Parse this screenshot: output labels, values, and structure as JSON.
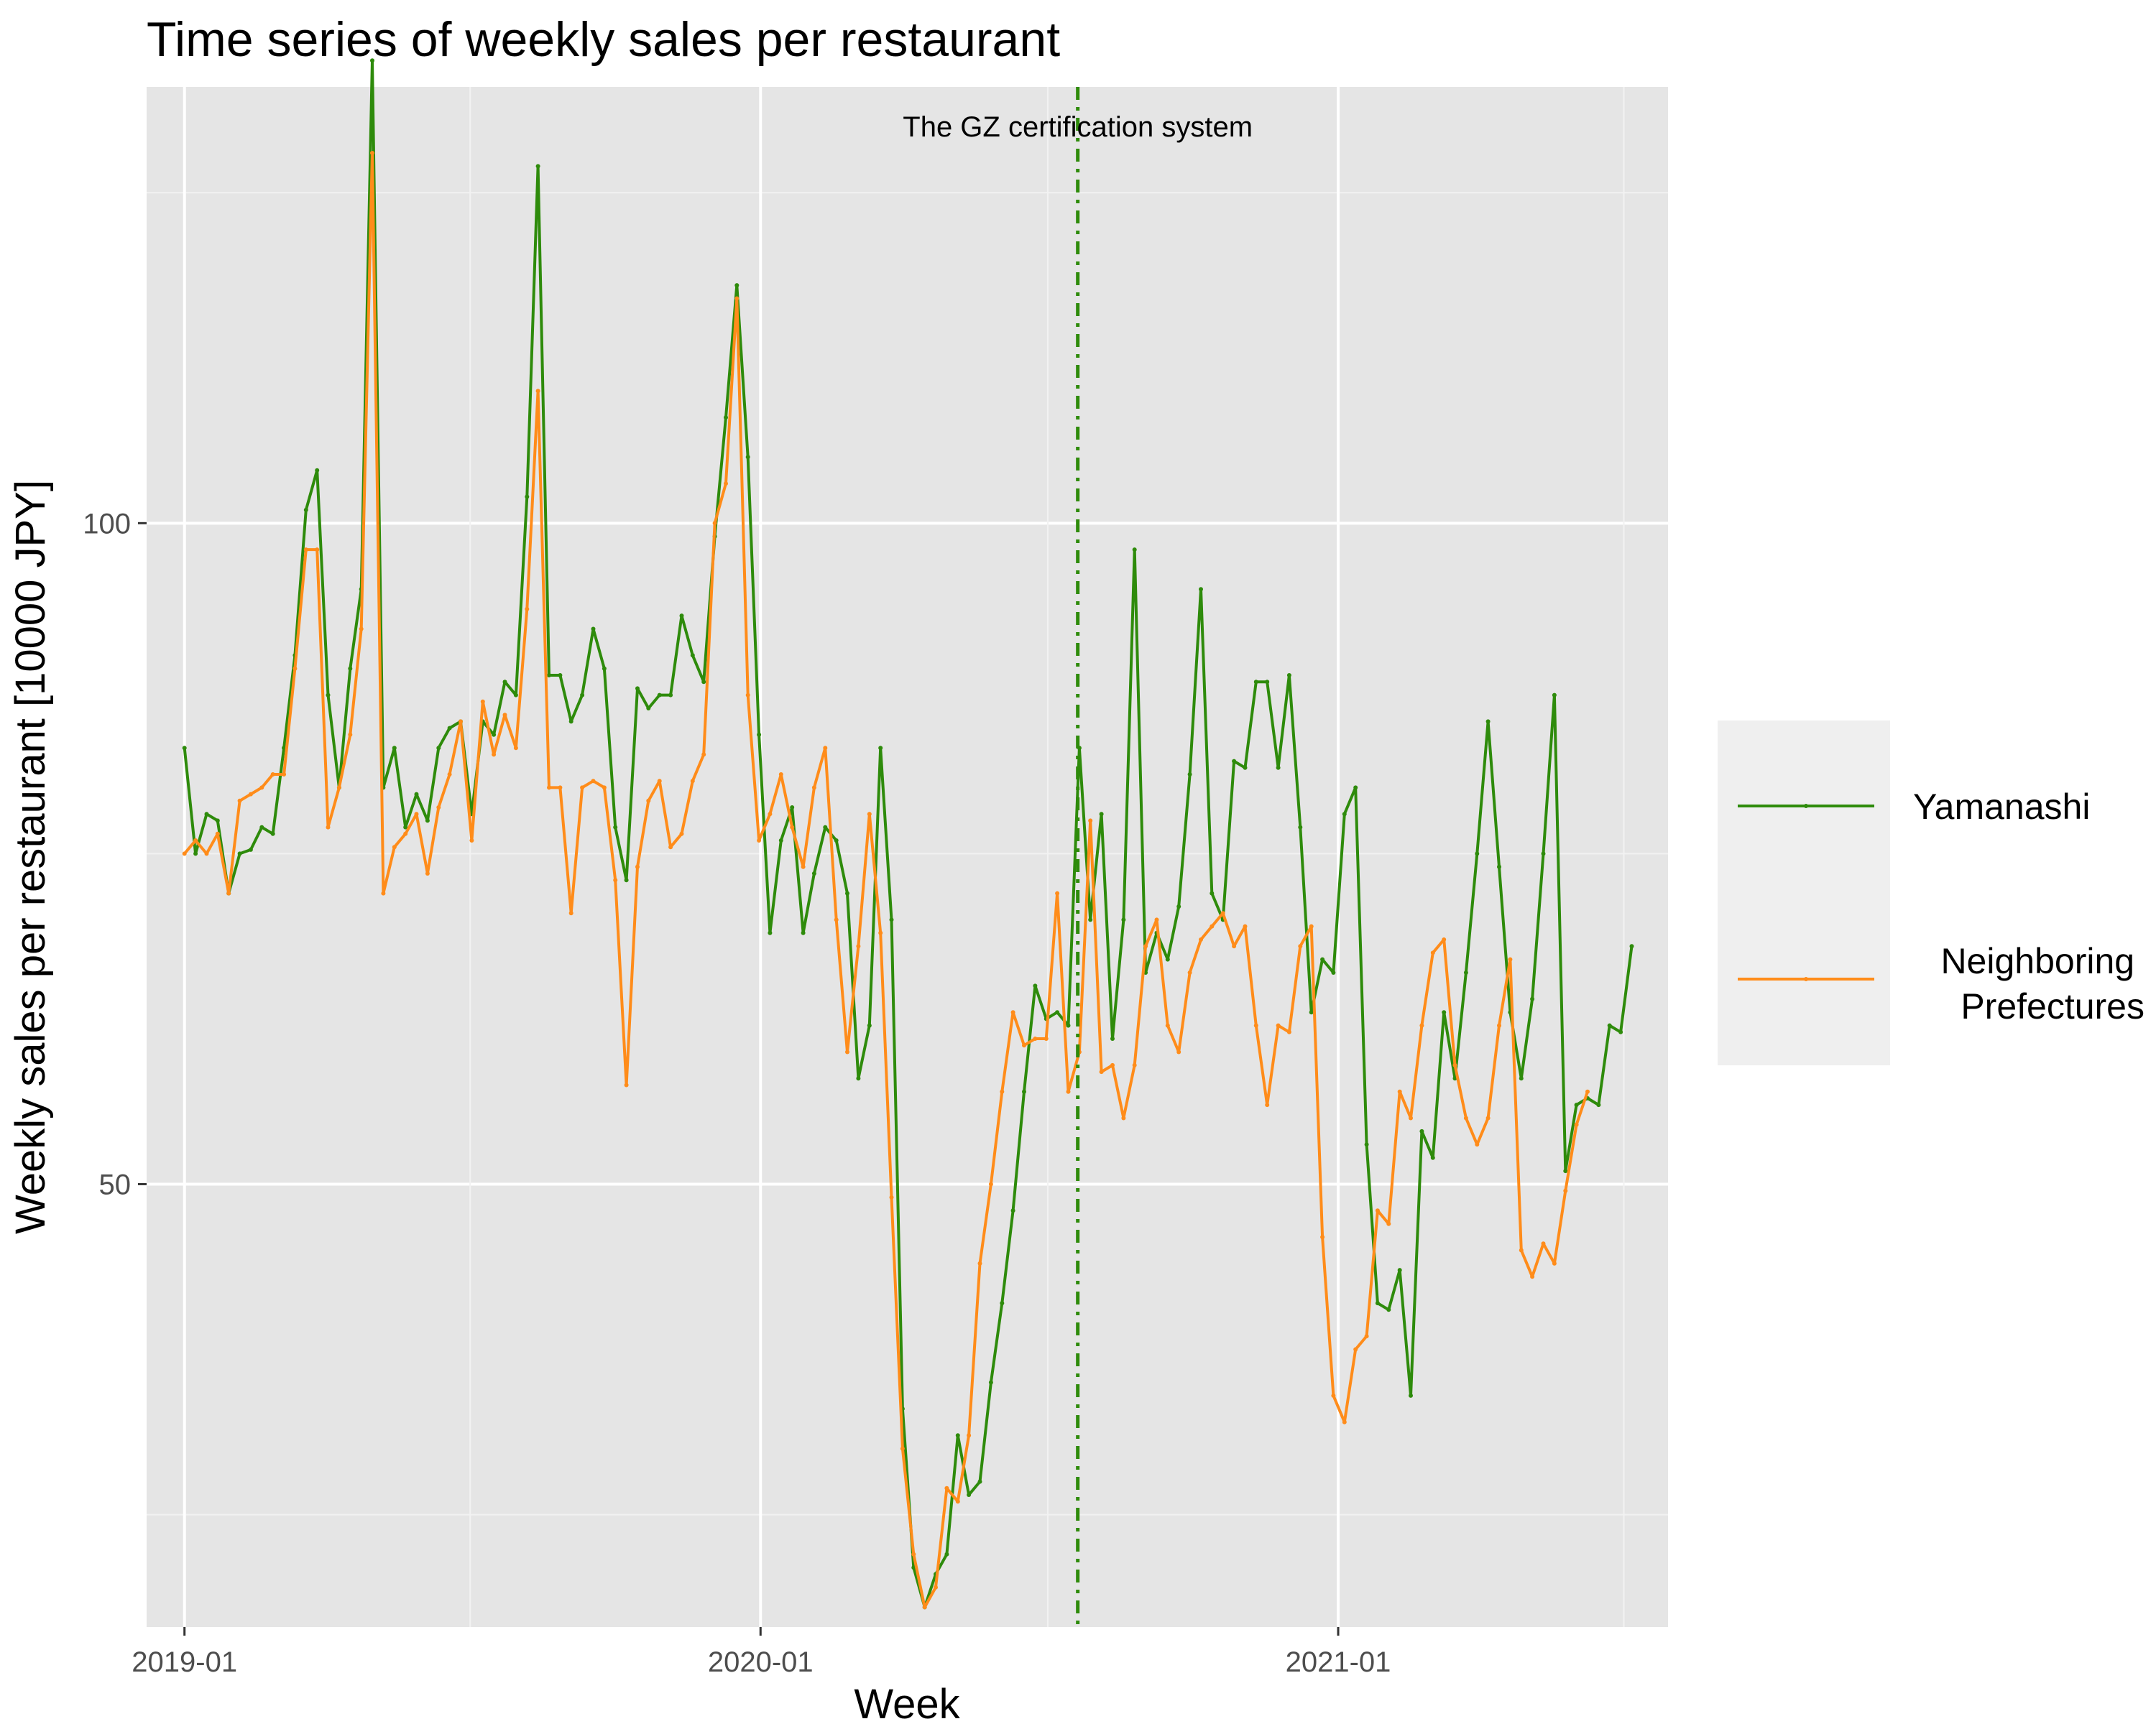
{
  "chart_data": {
    "type": "line",
    "title": "Time series of weekly sales per restaurant",
    "xlabel": "Week",
    "ylabel": "Weekly sales per restaurant [10000 JPY]",
    "x_ticks": [
      "2019-01",
      "2020-01",
      "2021-01"
    ],
    "y_ticks": [
      50,
      100
    ],
    "xlim": [
      "2018-12-08",
      "2021-07-29"
    ],
    "ylim": [
      16.5,
      133
    ],
    "grid": true,
    "legend_position": "right",
    "start_week": "2019-01-01",
    "annotation": {
      "text": "The GZ certification system",
      "date": "2020-07-20",
      "y": 130
    },
    "series": [
      {
        "name": "Yamanashi",
        "color": "#2E8B0B",
        "values": [
          83,
          75,
          78,
          77.5,
          72,
          75,
          75.3,
          77,
          76.5,
          83,
          90,
          101,
          104,
          87,
          80,
          89,
          95,
          135,
          80,
          83,
          77,
          79.5,
          77.5,
          83,
          84.5,
          85,
          78,
          85,
          84,
          88,
          87,
          102,
          127,
          88.5,
          88.5,
          85,
          87,
          92,
          89,
          77,
          73,
          87.5,
          86,
          87,
          87,
          93,
          90,
          88,
          99,
          108,
          118,
          105,
          84,
          69,
          76,
          78.5,
          69,
          73.5,
          77,
          76,
          72,
          58,
          62,
          83,
          70,
          33,
          21,
          18,
          20.5,
          22,
          31,
          26.5,
          27.5,
          35,
          41,
          48,
          57,
          65,
          62.5,
          63,
          62,
          83,
          70,
          78,
          61,
          70,
          98,
          66,
          69,
          67,
          71,
          81,
          95,
          72,
          70,
          82,
          81.5,
          88,
          88,
          81.5,
          88.5,
          77,
          63,
          67,
          66,
          78,
          80,
          53,
          41,
          40.5,
          43.5,
          34,
          54,
          52,
          63,
          58,
          66,
          75,
          85,
          74,
          63,
          58,
          64,
          75,
          87,
          51,
          56,
          56.5,
          56,
          62,
          61.5,
          68
        ]
      },
      {
        "name": "Neighboring\nPrefectures",
        "color": "#FF8C1A",
        "values": [
          75,
          76,
          75,
          76.5,
          72,
          79,
          79.5,
          80,
          81,
          81,
          89,
          98,
          98,
          77,
          80,
          84,
          92,
          128,
          72,
          75.5,
          76.5,
          78,
          73.5,
          78.5,
          81,
          85,
          76,
          86.5,
          82.5,
          85.5,
          83,
          93.5,
          110,
          80,
          80,
          70.5,
          80,
          80.5,
          80,
          73,
          57.5,
          74,
          79,
          80.5,
          75.5,
          76.5,
          80.5,
          82.5,
          100,
          103,
          117,
          87,
          76,
          78,
          81,
          77,
          74,
          80,
          83,
          70,
          60,
          68,
          78,
          69,
          49,
          30,
          22,
          18,
          19.5,
          27,
          26,
          31,
          44,
          50,
          57,
          63,
          60.5,
          61,
          61,
          72,
          57,
          60,
          77.5,
          58.5,
          59,
          55,
          59,
          68,
          70,
          62,
          60,
          66,
          68.5,
          69.5,
          70.5,
          68,
          69.5,
          62,
          56,
          62,
          61.5,
          68,
          69.5,
          46,
          34,
          32,
          37.5,
          38.5,
          48,
          47,
          57,
          55,
          62,
          67.5,
          68.5,
          59,
          55,
          53,
          55,
          62,
          67,
          45,
          43,
          45.5,
          44,
          49.5,
          54.5,
          57
        ]
      }
    ]
  }
}
